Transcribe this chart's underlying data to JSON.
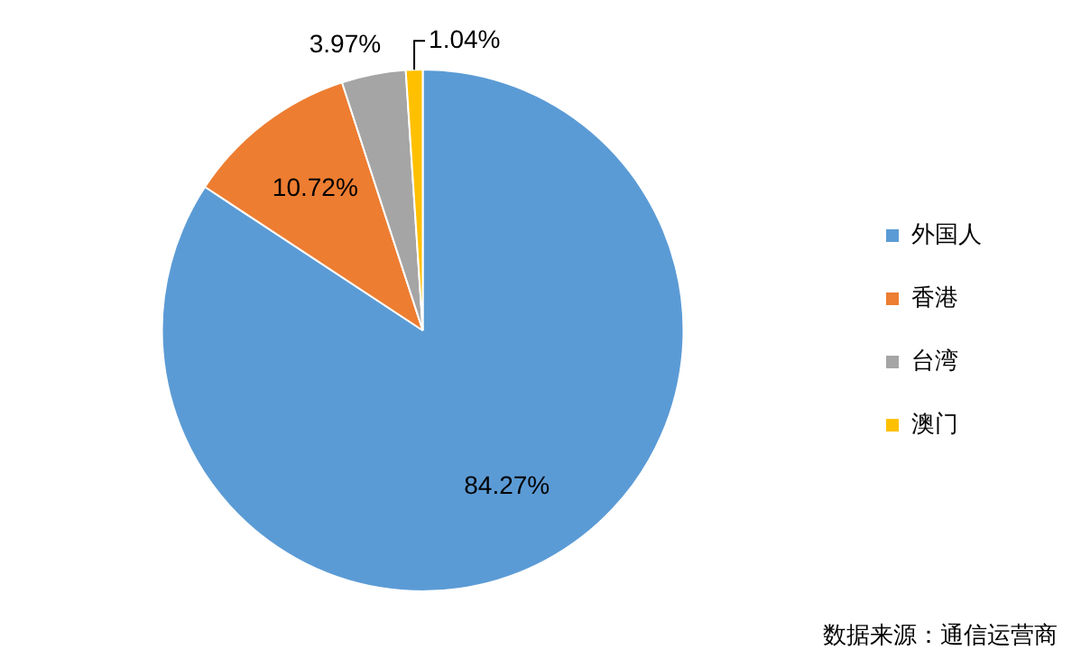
{
  "chart_data": {
    "type": "pie",
    "categories": [
      "外国人",
      "香港",
      "台湾",
      "澳门"
    ],
    "values": [
      84.27,
      10.72,
      3.97,
      1.04
    ],
    "colors": [
      "#5b9bd5",
      "#ed7d31",
      "#a5a5a5",
      "#ffc000"
    ],
    "value_labels": [
      "84.27%",
      "10.72%",
      "3.97%",
      "1.04%"
    ],
    "legend": "right",
    "annotations": [
      "数据来源：通信运营商"
    ]
  }
}
